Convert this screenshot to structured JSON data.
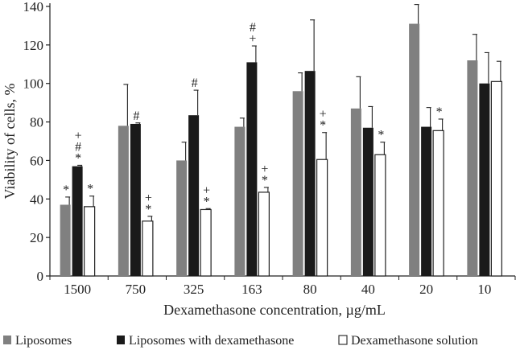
{
  "chart_data": {
    "type": "bar",
    "title": "",
    "xlabel": "Dexamethasone concentration, µg/mL",
    "ylabel": "Viability of cells, %",
    "ylim": [
      0,
      140
    ],
    "yticks": [
      0,
      20,
      40,
      60,
      80,
      100,
      120,
      140
    ],
    "categories": [
      "1500",
      "750",
      "325",
      "163",
      "80",
      "40",
      "20",
      "10"
    ],
    "series": [
      {
        "name": "Liposomes",
        "color": "#808080",
        "values": [
          37,
          78,
          60,
          77.5,
          96,
          87,
          131,
          112
        ],
        "errors": [
          4,
          21.5,
          9.5,
          4.5,
          9.5,
          16.5,
          10,
          13.5
        ],
        "annotations": [
          "*",
          "",
          "",
          "",
          "",
          "",
          "",
          ""
        ]
      },
      {
        "name": "Liposomes with dexamethasone",
        "color": "#1a1a1a",
        "values": [
          57,
          79,
          83.5,
          111,
          106.5,
          77,
          77.5,
          100
        ],
        "errors": [
          0.5,
          0.5,
          13,
          8.5,
          26.5,
          11,
          10,
          16
        ],
        "annotations": [
          "+\n#\n*",
          "#",
          "#",
          "#\n+",
          "",
          "",
          "",
          ""
        ]
      },
      {
        "name": "Dexamethasone solution",
        "color": "#ffffff",
        "values": [
          36,
          28.5,
          34.5,
          43.5,
          60.5,
          63,
          75.5,
          101
        ],
        "errors": [
          5.5,
          2.5,
          0.5,
          2.5,
          14,
          6.5,
          6,
          10.5
        ],
        "annotations": [
          "*",
          "+\n*",
          "+\n*",
          "+\n*",
          "+\n*",
          "*",
          "*",
          ""
        ]
      }
    ],
    "legend": "bottom"
  }
}
